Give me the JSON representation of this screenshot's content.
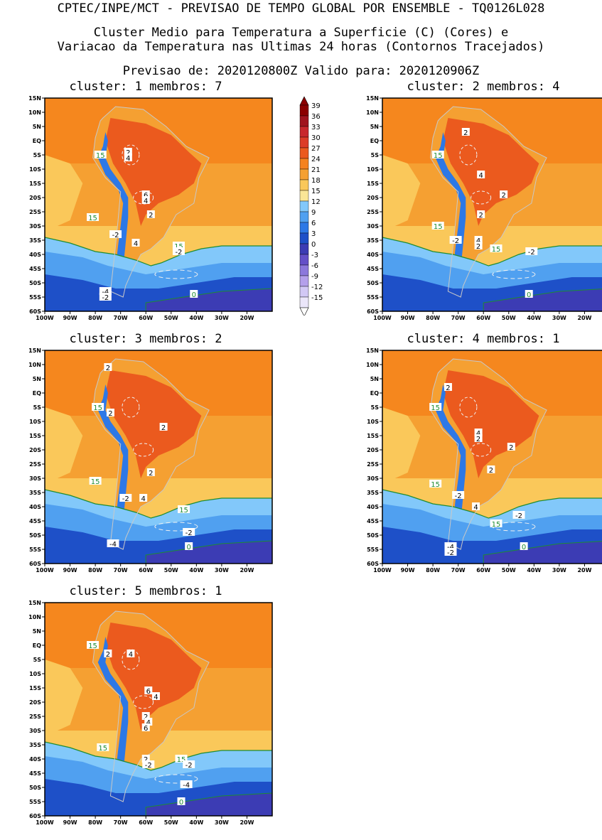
{
  "header": {
    "line1": "CPTEC/INPE/MCT - PREVISAO DE TEMPO GLOBAL POR ENSEMBLE - TQ0126L028",
    "line2": "Cluster Medio para Temperatura a Superficie (C) (Cores) e",
    "line3": "Variacao da Temperatura nas Ultimas 24 horas (Contornos Tracejados)",
    "line4": "Previsao de: 2020120800Z   Valido para: 2020120906Z"
  },
  "axes": {
    "lat_ticks": [
      "15N",
      "10N",
      "5N",
      "EQ",
      "5S",
      "10S",
      "15S",
      "20S",
      "25S",
      "30S",
      "35S",
      "40S",
      "45S",
      "50S",
      "55S",
      "60S"
    ],
    "lon_ticks": [
      "100W",
      "90W",
      "80W",
      "70W",
      "60W",
      "50W",
      "40W",
      "30W",
      "20W"
    ]
  },
  "colorbar": {
    "labels": [
      "39",
      "36",
      "33",
      "30",
      "27",
      "24",
      "21",
      "18",
      "15",
      "12",
      "9",
      "6",
      "3",
      "0",
      "-3",
      "-6",
      "-9",
      "-12",
      "-15"
    ],
    "colors": [
      "#8b0000",
      "#a0141e",
      "#c8282d",
      "#dc3c28",
      "#eb5a1e",
      "#f5821e",
      "#f5a032",
      "#fac85a",
      "#fae696",
      "#82c8fa",
      "#50a0f0",
      "#2d78e6",
      "#1e50c8",
      "#3c3cb4",
      "#6450c8",
      "#8c78dc",
      "#b4a0eb",
      "#d2c8f5",
      "#ebe6fa"
    ]
  },
  "panels": [
    {
      "title": "cluster: 1  membros: 7",
      "labels": [
        {
          "t": "15",
          "c": "g",
          "lon": -78,
          "lat": -5
        },
        {
          "t": "15",
          "c": "g",
          "lon": -81,
          "lat": -27
        },
        {
          "t": "15",
          "c": "g",
          "lon": -47,
          "lat": -37
        },
        {
          "t": "0",
          "c": "g",
          "lon": -41,
          "lat": -54
        },
        {
          "t": "2",
          "c": "w",
          "lon": -67,
          "lat": -4
        },
        {
          "t": "4",
          "c": "w",
          "lon": -67,
          "lat": -6
        },
        {
          "t": "6",
          "c": "w",
          "lon": -60,
          "lat": -19
        },
        {
          "t": "4",
          "c": "w",
          "lon": -60,
          "lat": -21
        },
        {
          "t": "2",
          "c": "w",
          "lon": -58,
          "lat": -26
        },
        {
          "t": "-2",
          "c": "w",
          "lon": -72,
          "lat": -33
        },
        {
          "t": "4",
          "c": "w",
          "lon": -64,
          "lat": -36
        },
        {
          "t": "-2",
          "c": "w",
          "lon": -47,
          "lat": -39
        },
        {
          "t": "-4",
          "c": "w",
          "lon": -76,
          "lat": -53
        },
        {
          "t": "-2",
          "c": "w",
          "lon": -76,
          "lat": -55
        }
      ]
    },
    {
      "title": "cluster: 2  membros: 4",
      "labels": [
        {
          "t": "15",
          "c": "g",
          "lon": -78,
          "lat": -5
        },
        {
          "t": "15",
          "c": "g",
          "lon": -78,
          "lat": -30
        },
        {
          "t": "15",
          "c": "g",
          "lon": -55,
          "lat": -38
        },
        {
          "t": "0",
          "c": "g",
          "lon": -42,
          "lat": -54
        },
        {
          "t": "2",
          "c": "w",
          "lon": -67,
          "lat": 3
        },
        {
          "t": "4",
          "c": "w",
          "lon": -61,
          "lat": -12
        },
        {
          "t": "2",
          "c": "w",
          "lon": -52,
          "lat": -19
        },
        {
          "t": "2",
          "c": "w",
          "lon": -61,
          "lat": -26
        },
        {
          "t": "-2",
          "c": "w",
          "lon": -71,
          "lat": -35
        },
        {
          "t": "4",
          "c": "w",
          "lon": -62,
          "lat": -35
        },
        {
          "t": "2",
          "c": "w",
          "lon": -62,
          "lat": -37
        },
        {
          "t": "-2",
          "c": "w",
          "lon": -41,
          "lat": -39
        }
      ]
    },
    {
      "title": "cluster: 3  membros: 2",
      "labels": [
        {
          "t": "2",
          "c": "w",
          "lon": -75,
          "lat": 9
        },
        {
          "t": "15",
          "c": "g",
          "lon": -79,
          "lat": -5
        },
        {
          "t": "2",
          "c": "w",
          "lon": -74,
          "lat": -7
        },
        {
          "t": "2",
          "c": "w",
          "lon": -53,
          "lat": -12
        },
        {
          "t": "2",
          "c": "w",
          "lon": -58,
          "lat": -28
        },
        {
          "t": "15",
          "c": "g",
          "lon": -80,
          "lat": -31
        },
        {
          "t": "-2",
          "c": "w",
          "lon": -68,
          "lat": -37
        },
        {
          "t": "4",
          "c": "w",
          "lon": -61,
          "lat": -37
        },
        {
          "t": "15",
          "c": "g",
          "lon": -45,
          "lat": -41
        },
        {
          "t": "-2",
          "c": "w",
          "lon": -43,
          "lat": -49
        },
        {
          "t": "-4",
          "c": "w",
          "lon": -73,
          "lat": -53
        },
        {
          "t": "0",
          "c": "g",
          "lon": -43,
          "lat": -54
        }
      ]
    },
    {
      "title": "cluster: 4  membros: 1",
      "labels": [
        {
          "t": "2",
          "c": "w",
          "lon": -74,
          "lat": 2
        },
        {
          "t": "15",
          "c": "g",
          "lon": -79,
          "lat": -5
        },
        {
          "t": "4",
          "c": "w",
          "lon": -62,
          "lat": -14
        },
        {
          "t": "2",
          "c": "w",
          "lon": -62,
          "lat": -16
        },
        {
          "t": "2",
          "c": "w",
          "lon": -49,
          "lat": -19
        },
        {
          "t": "2",
          "c": "w",
          "lon": -57,
          "lat": -27
        },
        {
          "t": "15",
          "c": "g",
          "lon": -79,
          "lat": -32
        },
        {
          "t": "-2",
          "c": "w",
          "lon": -70,
          "lat": -36
        },
        {
          "t": "4",
          "c": "w",
          "lon": -63,
          "lat": -40
        },
        {
          "t": "-2",
          "c": "w",
          "lon": -46,
          "lat": -43
        },
        {
          "t": "15",
          "c": "g",
          "lon": -55,
          "lat": -46
        },
        {
          "t": "-4",
          "c": "w",
          "lon": -73,
          "lat": -54
        },
        {
          "t": "-2",
          "c": "w",
          "lon": -73,
          "lat": -56
        },
        {
          "t": "0",
          "c": "g",
          "lon": -44,
          "lat": -54
        }
      ]
    },
    {
      "title": "cluster: 5  membros: 1",
      "labels": [
        {
          "t": "15",
          "c": "g",
          "lon": -81,
          "lat": 0
        },
        {
          "t": "4",
          "c": "w",
          "lon": -66,
          "lat": -3
        },
        {
          "t": "2",
          "c": "w",
          "lon": -75,
          "lat": -3
        },
        {
          "t": "6",
          "c": "w",
          "lon": -59,
          "lat": -16
        },
        {
          "t": "4",
          "c": "w",
          "lon": -56,
          "lat": -18
        },
        {
          "t": "2",
          "c": "w",
          "lon": -60,
          "lat": -25
        },
        {
          "t": "4",
          "c": "w",
          "lon": -59,
          "lat": -27
        },
        {
          "t": "6",
          "c": "w",
          "lon": -60,
          "lat": -29
        },
        {
          "t": "15",
          "c": "g",
          "lon": -77,
          "lat": -36
        },
        {
          "t": "2",
          "c": "w",
          "lon": -60,
          "lat": -40
        },
        {
          "t": "-2",
          "c": "w",
          "lon": -59,
          "lat": -42
        },
        {
          "t": "15",
          "c": "g",
          "lon": -46,
          "lat": -40
        },
        {
          "t": "-2",
          "c": "w",
          "lon": -43,
          "lat": -42
        },
        {
          "t": "-4",
          "c": "w",
          "lon": -44,
          "lat": -49
        },
        {
          "t": "0",
          "c": "g",
          "lon": -46,
          "lat": -55
        }
      ]
    }
  ]
}
